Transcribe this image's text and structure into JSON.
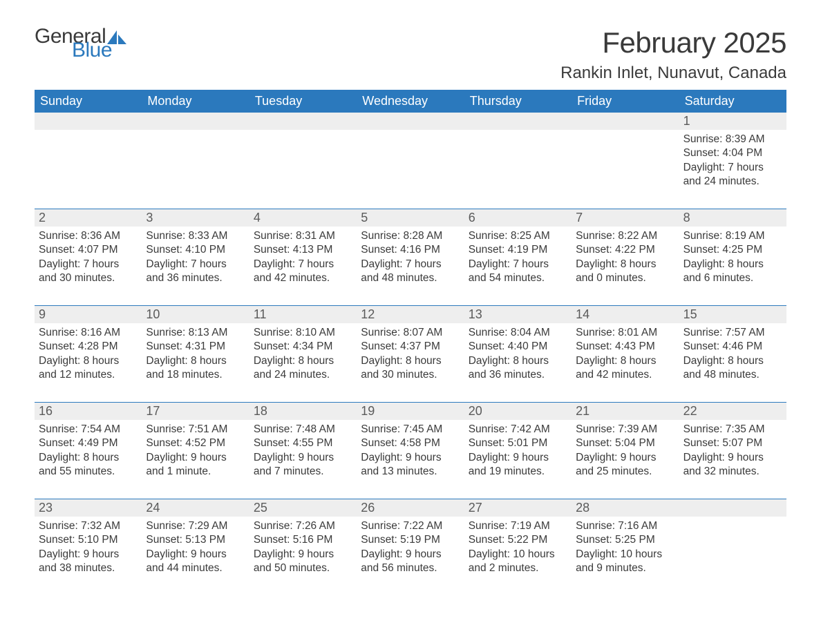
{
  "brand": {
    "word1": "General",
    "word2": "Blue",
    "sail_color": "#2b79bd"
  },
  "header": {
    "title": "February 2025",
    "location": "Rankin Inlet, Nunavut, Canada"
  },
  "colors": {
    "header_bg": "#2b79bd",
    "header_text": "#ffffff",
    "daynum_bg": "#eeeeee",
    "week_border": "#2b79bd",
    "body_text": "#3a3a3a",
    "page_bg": "#ffffff"
  },
  "fonts": {
    "title_size_pt": 32,
    "location_size_pt": 18,
    "weekday_size_pt": 14,
    "cell_size_pt": 12
  },
  "weekdays": [
    "Sunday",
    "Monday",
    "Tuesday",
    "Wednesday",
    "Thursday",
    "Friday",
    "Saturday"
  ],
  "weeks": [
    [
      {},
      {},
      {},
      {},
      {},
      {},
      {
        "n": "1",
        "sr": "Sunrise: 8:39 AM",
        "ss": "Sunset: 4:04 PM",
        "d1": "Daylight: 7 hours",
        "d2": "and 24 minutes."
      }
    ],
    [
      {
        "n": "2",
        "sr": "Sunrise: 8:36 AM",
        "ss": "Sunset: 4:07 PM",
        "d1": "Daylight: 7 hours",
        "d2": "and 30 minutes."
      },
      {
        "n": "3",
        "sr": "Sunrise: 8:33 AM",
        "ss": "Sunset: 4:10 PM",
        "d1": "Daylight: 7 hours",
        "d2": "and 36 minutes."
      },
      {
        "n": "4",
        "sr": "Sunrise: 8:31 AM",
        "ss": "Sunset: 4:13 PM",
        "d1": "Daylight: 7 hours",
        "d2": "and 42 minutes."
      },
      {
        "n": "5",
        "sr": "Sunrise: 8:28 AM",
        "ss": "Sunset: 4:16 PM",
        "d1": "Daylight: 7 hours",
        "d2": "and 48 minutes."
      },
      {
        "n": "6",
        "sr": "Sunrise: 8:25 AM",
        "ss": "Sunset: 4:19 PM",
        "d1": "Daylight: 7 hours",
        "d2": "and 54 minutes."
      },
      {
        "n": "7",
        "sr": "Sunrise: 8:22 AM",
        "ss": "Sunset: 4:22 PM",
        "d1": "Daylight: 8 hours",
        "d2": "and 0 minutes."
      },
      {
        "n": "8",
        "sr": "Sunrise: 8:19 AM",
        "ss": "Sunset: 4:25 PM",
        "d1": "Daylight: 8 hours",
        "d2": "and 6 minutes."
      }
    ],
    [
      {
        "n": "9",
        "sr": "Sunrise: 8:16 AM",
        "ss": "Sunset: 4:28 PM",
        "d1": "Daylight: 8 hours",
        "d2": "and 12 minutes."
      },
      {
        "n": "10",
        "sr": "Sunrise: 8:13 AM",
        "ss": "Sunset: 4:31 PM",
        "d1": "Daylight: 8 hours",
        "d2": "and 18 minutes."
      },
      {
        "n": "11",
        "sr": "Sunrise: 8:10 AM",
        "ss": "Sunset: 4:34 PM",
        "d1": "Daylight: 8 hours",
        "d2": "and 24 minutes."
      },
      {
        "n": "12",
        "sr": "Sunrise: 8:07 AM",
        "ss": "Sunset: 4:37 PM",
        "d1": "Daylight: 8 hours",
        "d2": "and 30 minutes."
      },
      {
        "n": "13",
        "sr": "Sunrise: 8:04 AM",
        "ss": "Sunset: 4:40 PM",
        "d1": "Daylight: 8 hours",
        "d2": "and 36 minutes."
      },
      {
        "n": "14",
        "sr": "Sunrise: 8:01 AM",
        "ss": "Sunset: 4:43 PM",
        "d1": "Daylight: 8 hours",
        "d2": "and 42 minutes."
      },
      {
        "n": "15",
        "sr": "Sunrise: 7:57 AM",
        "ss": "Sunset: 4:46 PM",
        "d1": "Daylight: 8 hours",
        "d2": "and 48 minutes."
      }
    ],
    [
      {
        "n": "16",
        "sr": "Sunrise: 7:54 AM",
        "ss": "Sunset: 4:49 PM",
        "d1": "Daylight: 8 hours",
        "d2": "and 55 minutes."
      },
      {
        "n": "17",
        "sr": "Sunrise: 7:51 AM",
        "ss": "Sunset: 4:52 PM",
        "d1": "Daylight: 9 hours",
        "d2": "and 1 minute."
      },
      {
        "n": "18",
        "sr": "Sunrise: 7:48 AM",
        "ss": "Sunset: 4:55 PM",
        "d1": "Daylight: 9 hours",
        "d2": "and 7 minutes."
      },
      {
        "n": "19",
        "sr": "Sunrise: 7:45 AM",
        "ss": "Sunset: 4:58 PM",
        "d1": "Daylight: 9 hours",
        "d2": "and 13 minutes."
      },
      {
        "n": "20",
        "sr": "Sunrise: 7:42 AM",
        "ss": "Sunset: 5:01 PM",
        "d1": "Daylight: 9 hours",
        "d2": "and 19 minutes."
      },
      {
        "n": "21",
        "sr": "Sunrise: 7:39 AM",
        "ss": "Sunset: 5:04 PM",
        "d1": "Daylight: 9 hours",
        "d2": "and 25 minutes."
      },
      {
        "n": "22",
        "sr": "Sunrise: 7:35 AM",
        "ss": "Sunset: 5:07 PM",
        "d1": "Daylight: 9 hours",
        "d2": "and 32 minutes."
      }
    ],
    [
      {
        "n": "23",
        "sr": "Sunrise: 7:32 AM",
        "ss": "Sunset: 5:10 PM",
        "d1": "Daylight: 9 hours",
        "d2": "and 38 minutes."
      },
      {
        "n": "24",
        "sr": "Sunrise: 7:29 AM",
        "ss": "Sunset: 5:13 PM",
        "d1": "Daylight: 9 hours",
        "d2": "and 44 minutes."
      },
      {
        "n": "25",
        "sr": "Sunrise: 7:26 AM",
        "ss": "Sunset: 5:16 PM",
        "d1": "Daylight: 9 hours",
        "d2": "and 50 minutes."
      },
      {
        "n": "26",
        "sr": "Sunrise: 7:22 AM",
        "ss": "Sunset: 5:19 PM",
        "d1": "Daylight: 9 hours",
        "d2": "and 56 minutes."
      },
      {
        "n": "27",
        "sr": "Sunrise: 7:19 AM",
        "ss": "Sunset: 5:22 PM",
        "d1": "Daylight: 10 hours",
        "d2": "and 2 minutes."
      },
      {
        "n": "28",
        "sr": "Sunrise: 7:16 AM",
        "ss": "Sunset: 5:25 PM",
        "d1": "Daylight: 10 hours",
        "d2": "and 9 minutes."
      },
      {}
    ]
  ]
}
